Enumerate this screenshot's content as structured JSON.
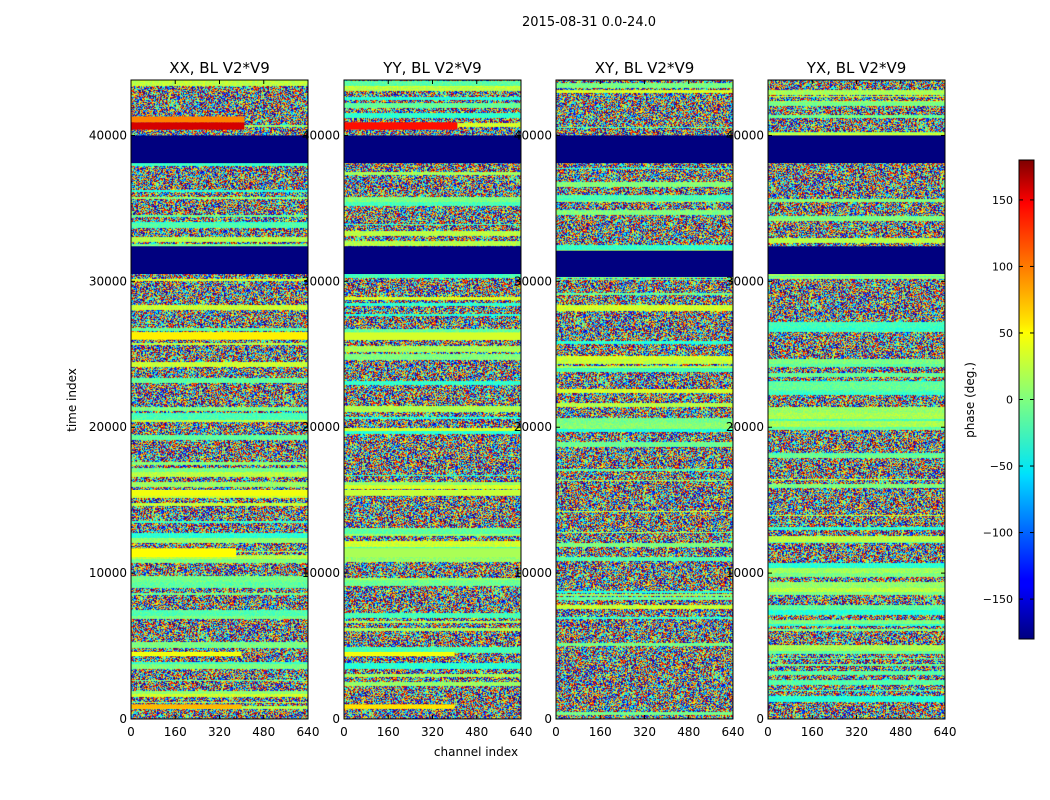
{
  "figure": {
    "suptitle": "2015-08-31 0.0-24.0",
    "xlabel": "channel index",
    "ylabel": "time index"
  },
  "chart_data": {
    "type": "heatmap",
    "title": "2015-08-31 0.0-24.0",
    "xlabel": "channel index",
    "ylabel": "time index",
    "xlim": [
      0,
      640
    ],
    "ylim": [
      0,
      43800
    ],
    "x_ticks": [
      0,
      160,
      320,
      480,
      640
    ],
    "y_ticks": [
      0,
      10000,
      20000,
      30000,
      40000
    ],
    "colormap": "jet",
    "panels": [
      {
        "title": "XX, BL V2*V9",
        "masked_bands": [
          [
            38100,
            40000
          ],
          [
            30500,
            32400
          ]
        ],
        "highlight_bands": [
          {
            "range": [
              40400,
              40900
            ],
            "phase": 150,
            "x_to": 410
          },
          {
            "range": [
              40900,
              41300
            ],
            "phase": 90,
            "x_to": 410
          },
          {
            "range": [
              26000,
              26500
            ],
            "phase": 50,
            "x_to": 640
          },
          {
            "range": [
              11100,
              11700
            ],
            "phase": 45,
            "x_to": 380
          },
          {
            "range": [
              15300,
              15700
            ],
            "phase": 40,
            "x_to": 640
          },
          {
            "range": [
              4300,
              4600
            ],
            "phase": 40,
            "x_to": 400
          },
          {
            "range": [
              700,
              1000
            ],
            "phase": 70,
            "x_to": 400
          }
        ]
      },
      {
        "title": "YY, BL V2*V9",
        "masked_bands": [
          [
            38100,
            40000
          ],
          [
            30500,
            32400
          ]
        ],
        "highlight_bands": [
          {
            "range": [
              40400,
              40900
            ],
            "phase": 130,
            "x_to": 410
          },
          {
            "range": [
              26000,
              26500
            ],
            "phase": 30,
            "x_to": 640
          },
          {
            "range": [
              11100,
              11700
            ],
            "phase": 15,
            "x_to": 640
          },
          {
            "range": [
              15300,
              15700
            ],
            "phase": 25,
            "x_to": 640
          },
          {
            "range": [
              4300,
              4600
            ],
            "phase": 40,
            "x_to": 400
          },
          {
            "range": [
              700,
              1000
            ],
            "phase": 55,
            "x_to": 400
          }
        ]
      },
      {
        "title": "XY, BL V2*V9",
        "masked_bands": [
          [
            38100,
            40000
          ],
          [
            30300,
            32100
          ]
        ],
        "highlight_bands": []
      },
      {
        "title": "YX, BL V2*V9",
        "masked_bands": [
          [
            38100,
            40000
          ],
          [
            30500,
            32400
          ]
        ],
        "highlight_bands": []
      }
    ],
    "colorbar": {
      "label": "phase (deg.)",
      "range": [
        -180,
        180
      ],
      "ticks": [
        150,
        100,
        50,
        0,
        -50,
        -100,
        -150
      ],
      "tick_labels": [
        "150",
        "100",
        "50",
        "0",
        "−50",
        "−100",
        "−150"
      ]
    }
  }
}
